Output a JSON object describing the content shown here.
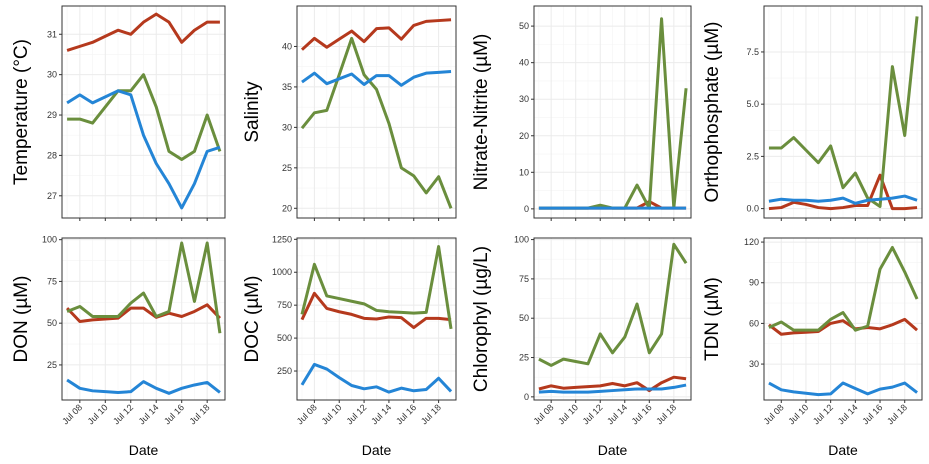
{
  "chart_data": [
    {
      "type": "line",
      "ylabel": "Temperature (°C)",
      "xlabel": "",
      "yticks": [
        27,
        28,
        29,
        30,
        31
      ],
      "ylim": [
        26.45,
        31.7
      ],
      "x": [
        "Jul 07",
        "Jul 08",
        "Jul 09",
        "Jul 10",
        "Jul 11",
        "Jul 12",
        "Jul 13",
        "Jul 14",
        "Jul 15",
        "Jul 16",
        "Jul 17",
        "Jul 18",
        "Jul 19"
      ],
      "series": [
        {
          "color": "#B5391D",
          "values": [
            30.6,
            30.7,
            30.8,
            30.95,
            31.1,
            31.0,
            31.3,
            31.5,
            31.3,
            30.8,
            31.1,
            31.3,
            31.3
          ]
        },
        {
          "color": "#6A8E3D",
          "values": [
            28.9,
            28.9,
            28.8,
            29.2,
            29.6,
            29.6,
            30.0,
            29.2,
            28.1,
            27.9,
            28.1,
            29.0,
            28.1
          ]
        },
        {
          "color": "#2485D6",
          "values": [
            29.3,
            29.5,
            29.3,
            29.45,
            29.6,
            29.5,
            28.5,
            27.8,
            27.3,
            26.7,
            27.3,
            28.1,
            28.2
          ]
        }
      ]
    },
    {
      "type": "line",
      "ylabel": "Salinity",
      "xlabel": "",
      "yticks": [
        20,
        25,
        30,
        35,
        40
      ],
      "ylim": [
        18.8,
        45
      ],
      "x": [
        "Jul 07",
        "Jul 08",
        "Jul 09",
        "Jul 10",
        "Jul 11",
        "Jul 12",
        "Jul 13",
        "Jul 14",
        "Jul 15",
        "Jul 16",
        "Jul 17",
        "Jul 18",
        "Jul 19"
      ],
      "series": [
        {
          "color": "#B5391D",
          "values": [
            39.6,
            41.0,
            39.9,
            40.9,
            41.9,
            40.6,
            42.2,
            42.3,
            40.9,
            42.6,
            43.1,
            43.2,
            43.3
          ]
        },
        {
          "color": "#6A8E3D",
          "values": [
            29.9,
            31.8,
            32.1,
            36.5,
            41.0,
            36.5,
            34.7,
            30.5,
            25.0,
            24.0,
            21.9,
            23.9,
            20.0
          ]
        },
        {
          "color": "#2485D6",
          "values": [
            35.6,
            36.7,
            35.4,
            36.0,
            36.6,
            35.3,
            36.4,
            36.4,
            35.2,
            36.2,
            36.7,
            36.8,
            36.9
          ]
        }
      ]
    },
    {
      "type": "line",
      "ylabel": "Nitrate-Nitrite (µM)",
      "xlabel": "",
      "yticks": [
        0,
        10,
        20,
        30,
        40,
        50
      ],
      "ylim": [
        -2.5,
        55.5
      ],
      "x": [
        "Jul 07",
        "Jul 08",
        "Jul 09",
        "Jul 10",
        "Jul 11",
        "Jul 12",
        "Jul 13",
        "Jul 14",
        "Jul 15",
        "Jul 16",
        "Jul 17",
        "Jul 18",
        "Jul 19"
      ],
      "series": [
        {
          "color": "#B5391D",
          "values": [
            0.2,
            0.2,
            0.2,
            0.2,
            0.2,
            0.2,
            0.2,
            0.2,
            0.2,
            2.0,
            0.2,
            0.2,
            0.2
          ]
        },
        {
          "color": "#6A8E3D",
          "values": [
            0.2,
            0.2,
            0.2,
            0.2,
            0.2,
            1.0,
            0.2,
            0.2,
            6.5,
            0.2,
            52.0,
            0.3,
            33.0
          ]
        },
        {
          "color": "#2485D6",
          "values": [
            0.2,
            0.2,
            0.2,
            0.2,
            0.2,
            0.2,
            0.2,
            0.2,
            0.2,
            0.2,
            0.2,
            0.2,
            0.2
          ]
        }
      ]
    },
    {
      "type": "line",
      "ylabel": "Orthophosphate (µM)",
      "xlabel": "",
      "yticks": [
        0.0,
        2.5,
        5.0,
        7.5
      ],
      "ytick_labels": [
        "0.0",
        "2.5",
        "5.0",
        "7.5"
      ],
      "ylim": [
        -0.45,
        9.7
      ],
      "x": [
        "Jul 07",
        "Jul 08",
        "Jul 09",
        "Jul 10",
        "Jul 11",
        "Jul 12",
        "Jul 13",
        "Jul 14",
        "Jul 15",
        "Jul 16",
        "Jul 17",
        "Jul 18",
        "Jul 19"
      ],
      "series": [
        {
          "color": "#B5391D",
          "values": [
            0.0,
            0.05,
            0.3,
            0.2,
            0.05,
            0.0,
            0.05,
            0.15,
            0.15,
            1.6,
            0.0,
            0.0,
            0.05
          ]
        },
        {
          "color": "#6A8E3D",
          "values": [
            2.9,
            2.9,
            3.4,
            2.8,
            2.2,
            3.0,
            1.0,
            1.7,
            0.5,
            0.1,
            6.8,
            3.5,
            9.2
          ]
        },
        {
          "color": "#2485D6",
          "values": [
            0.35,
            0.45,
            0.4,
            0.4,
            0.35,
            0.4,
            0.5,
            0.25,
            0.4,
            0.45,
            0.5,
            0.6,
            0.4
          ]
        }
      ]
    },
    {
      "type": "line",
      "ylabel": "DON (µM)",
      "xlabel": "Date",
      "yticks": [
        25,
        50,
        75,
        100
      ],
      "ylim": [
        4,
        101
      ],
      "x": [
        "Jul 07",
        "Jul 08",
        "Jul 09",
        "Jul 10",
        "Jul 11",
        "Jul 12",
        "Jul 13",
        "Jul 14",
        "Jul 15",
        "Jul 16",
        "Jul 17",
        "Jul 18",
        "Jul 19"
      ],
      "series": [
        {
          "color": "#B5391D",
          "values": [
            59,
            51,
            52,
            52.5,
            53,
            59,
            59,
            53.5,
            56,
            54,
            57,
            61,
            53
          ]
        },
        {
          "color": "#6A8E3D",
          "values": [
            57,
            60,
            54,
            54,
            54,
            62,
            68,
            54,
            57,
            98,
            63,
            98,
            44
          ]
        },
        {
          "color": "#2485D6",
          "values": [
            16,
            11,
            9.5,
            9,
            8.5,
            9,
            15,
            11,
            8,
            11,
            13,
            14.5,
            8.5
          ]
        }
      ]
    },
    {
      "type": "line",
      "ylabel": "DOC (µM)",
      "xlabel": "Date",
      "yticks": [
        250,
        500,
        750,
        1000,
        1250
      ],
      "ytick_labels": [
        "250",
        "500",
        "750",
        "1000",
        "1250"
      ],
      "ylim": [
        30,
        1260
      ],
      "x": [
        "Jul 07",
        "Jul 08",
        "Jul 09",
        "Jul 10",
        "Jul 11",
        "Jul 12",
        "Jul 13",
        "Jul 14",
        "Jul 15",
        "Jul 16",
        "Jul 17",
        "Jul 18",
        "Jul 19"
      ],
      "series": [
        {
          "color": "#B5391D",
          "values": [
            640,
            840,
            725,
            700,
            680,
            650,
            645,
            660,
            655,
            580,
            650,
            650,
            640
          ]
        },
        {
          "color": "#6A8E3D",
          "values": [
            680,
            1060,
            820,
            800,
            780,
            760,
            710,
            700,
            695,
            690,
            695,
            1195,
            570
          ]
        },
        {
          "color": "#2485D6",
          "values": [
            145,
            300,
            265,
            200,
            140,
            115,
            130,
            90,
            120,
            100,
            110,
            195,
            95
          ]
        }
      ]
    },
    {
      "type": "line",
      "ylabel": "Chlorophyl (µg/L)",
      "xlabel": "Date",
      "yticks": [
        0,
        25,
        50,
        75,
        100
      ],
      "ylim": [
        -2,
        101
      ],
      "x": [
        "Jul 07",
        "Jul 08",
        "Jul 09",
        "Jul 10",
        "Jul 11",
        "Jul 12",
        "Jul 13",
        "Jul 14",
        "Jul 15",
        "Jul 16",
        "Jul 17",
        "Jul 18",
        "Jul 19"
      ],
      "series": [
        {
          "color": "#B5391D",
          "values": [
            5,
            7,
            5.5,
            6,
            6.5,
            7,
            8.5,
            7,
            9,
            4,
            9,
            12.5,
            11.5
          ]
        },
        {
          "color": "#6A8E3D",
          "values": [
            24,
            20,
            24,
            22.5,
            21,
            40,
            28,
            38,
            59,
            28,
            40,
            97,
            85
          ]
        },
        {
          "color": "#2485D6",
          "values": [
            3,
            3.5,
            3,
            3,
            3,
            3.5,
            4,
            4.5,
            5,
            5,
            5,
            6,
            7.5
          ]
        }
      ]
    },
    {
      "type": "line",
      "ylabel": "TDN (µM)",
      "xlabel": "Date",
      "yticks": [
        30,
        60,
        90,
        120
      ],
      "ylim": [
        3.5,
        123
      ],
      "x": [
        "Jul 07",
        "Jul 08",
        "Jul 09",
        "Jul 10",
        "Jul 11",
        "Jul 12",
        "Jul 13",
        "Jul 14",
        "Jul 15",
        "Jul 16",
        "Jul 17",
        "Jul 18",
        "Jul 19"
      ],
      "series": [
        {
          "color": "#B5391D",
          "values": [
            59,
            52,
            53,
            53.5,
            54,
            60,
            62,
            56,
            57,
            56,
            59,
            63,
            55
          ]
        },
        {
          "color": "#6A8E3D",
          "values": [
            57,
            61,
            55,
            55,
            55,
            63,
            68,
            55,
            58,
            100,
            116,
            98,
            78
          ]
        },
        {
          "color": "#2485D6",
          "values": [
            16,
            11,
            9.5,
            8.5,
            7.5,
            8,
            16,
            12,
            8,
            11.5,
            13,
            16,
            9
          ]
        }
      ]
    }
  ],
  "x_tick_labels": [
    "Jul 08",
    "Jul 10",
    "Jul 12",
    "Jul 14",
    "Jul 16",
    "Jul 18"
  ],
  "x_tick_days": [
    8,
    10,
    12,
    14,
    16,
    18
  ]
}
